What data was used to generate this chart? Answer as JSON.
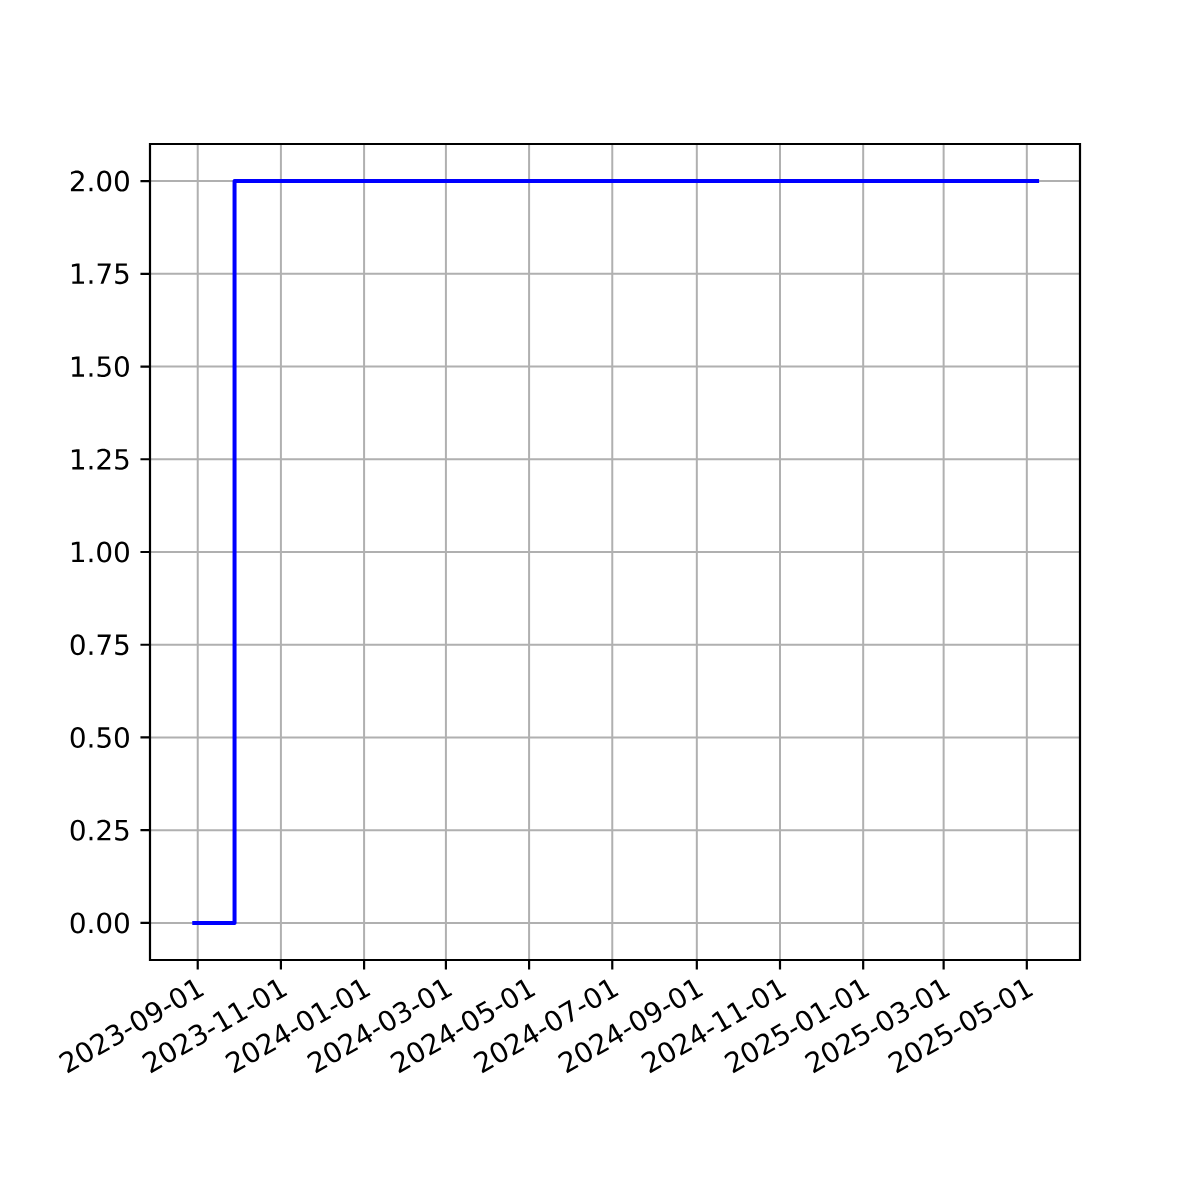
{
  "chart_data": {
    "type": "step",
    "x": [
      "2023-08-28",
      "2023-09-28",
      "2025-05-10"
    ],
    "values": [
      0,
      2,
      2
    ],
    "color": "#0000ff",
    "xlim": [
      "2023-07-28",
      "2025-06-09"
    ],
    "xticks": [
      "2023-09-01",
      "2023-11-01",
      "2024-01-01",
      "2024-03-01",
      "2024-05-01",
      "2024-07-01",
      "2024-09-01",
      "2024-11-01",
      "2025-01-01",
      "2025-03-01",
      "2025-05-01"
    ],
    "ylim": [
      -0.1,
      2.1
    ],
    "yticks": [
      {
        "value": 0,
        "label": "0.00"
      },
      {
        "value": 0.25,
        "label": "0.25"
      },
      {
        "value": 0.5,
        "label": "0.50"
      },
      {
        "value": 0.75,
        "label": "0.75"
      },
      {
        "value": 1,
        "label": "1.00"
      },
      {
        "value": 1.25,
        "label": "1.25"
      },
      {
        "value": 1.5,
        "label": "1.50"
      },
      {
        "value": 1.75,
        "label": "1.75"
      },
      {
        "value": 2,
        "label": "2.00"
      }
    ],
    "grid": true
  }
}
